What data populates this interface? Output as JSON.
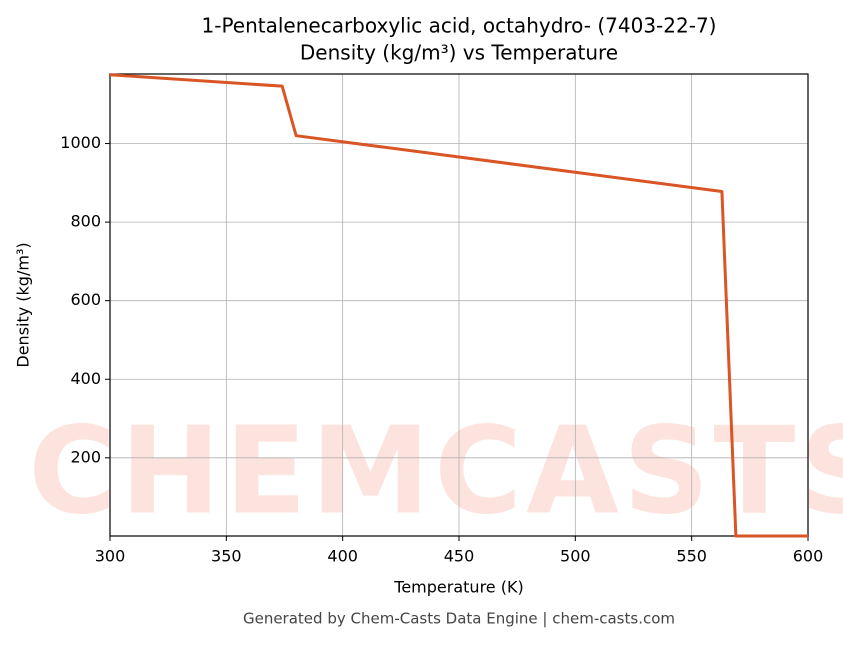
{
  "chart_data": {
    "type": "line",
    "title": "1-Pentalenecarboxylic acid, octahydro- (7403-22-7)",
    "subtitle": "Density (kg/m³) vs Temperature",
    "x_label": "Temperature (K)",
    "y_label": "Density (kg/m³)",
    "footer": "Generated by Chem-Casts Data Engine | chem-casts.com",
    "watermark": "CHEMCASTS",
    "x": [
      300,
      374,
      380,
      563,
      569,
      600
    ],
    "series": [
      {
        "name": "Density",
        "color": "#d95525",
        "values": [
          1175,
          1146,
          1020,
          878,
          1,
          1
        ]
      }
    ],
    "xlim": [
      300,
      600
    ],
    "xticks": [
      300,
      350,
      400,
      450,
      500,
      550,
      600
    ],
    "ylim": [
      1,
      1177
    ],
    "yticks": [
      200,
      400,
      600,
      800,
      1000
    ],
    "grid": true
  }
}
